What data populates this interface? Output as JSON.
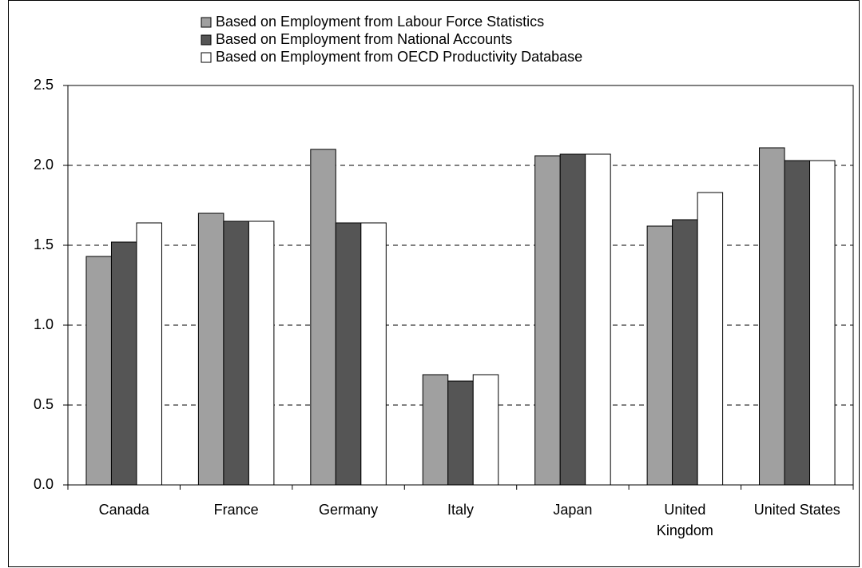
{
  "chart_data": {
    "type": "bar",
    "categories": [
      "Canada",
      "France",
      "Germany",
      "Italy",
      "Japan",
      "United Kingdom",
      "United States"
    ],
    "series": [
      {
        "name": "Based on Employment from Labour Force Statistics",
        "color": "#a0a0a0",
        "values": [
          1.43,
          1.7,
          2.1,
          0.69,
          2.06,
          1.62,
          2.11
        ]
      },
      {
        "name": "Based on Employment from National Accounts",
        "color": "#555555",
        "values": [
          1.52,
          1.65,
          1.64,
          0.65,
          2.07,
          1.66,
          2.03
        ]
      },
      {
        "name": "Based on Employment from OECD Productivity Database",
        "color": "#ffffff",
        "values": [
          1.64,
          1.65,
          1.64,
          0.69,
          2.07,
          1.83,
          2.03
        ]
      }
    ],
    "ylim": [
      0,
      2.5
    ],
    "yticks": [
      {
        "value": 0,
        "label": "0.0"
      },
      {
        "value": 0.5,
        "label": "0.5"
      },
      {
        "value": 1,
        "label": "1.0"
      },
      {
        "value": 1.5,
        "label": "1.5"
      },
      {
        "value": 2,
        "label": "2.0"
      },
      {
        "value": 2.5,
        "label": "2.5"
      }
    ],
    "grid": true,
    "legend": "top"
  }
}
